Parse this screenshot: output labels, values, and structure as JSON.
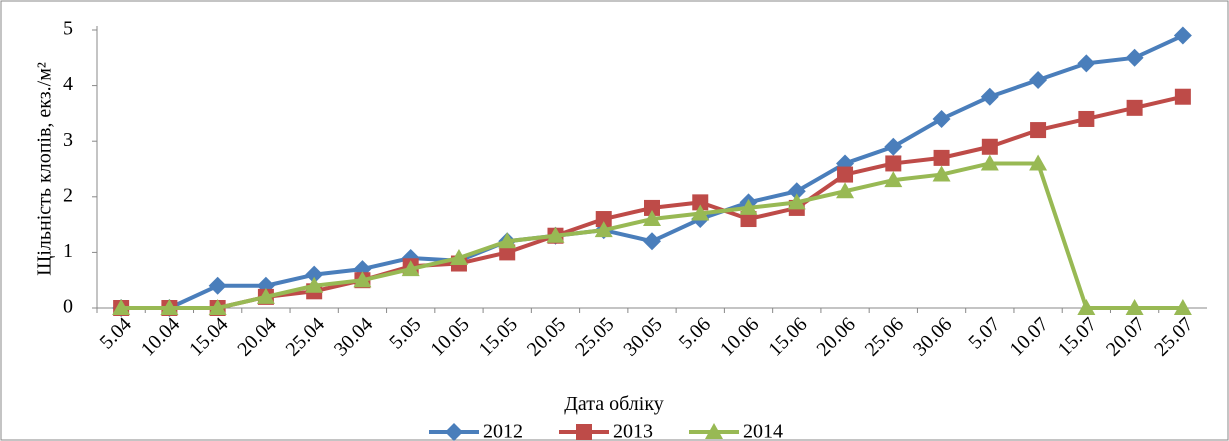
{
  "chart_data": {
    "type": "line",
    "x_label": "Дата обліку",
    "y_label": "Щільність клопів, екз./м²",
    "categories": [
      "5.04",
      "10.04",
      "15.04",
      "20.04",
      "25.04",
      "30.04",
      "5.05",
      "10.05",
      "15.05",
      "20.05",
      "25.05",
      "30.05",
      "5.06",
      "10.06",
      "15.06",
      "20.06",
      "25.06",
      "30.06",
      "5.07",
      "10.07",
      "15.07",
      "20.07",
      "25.07"
    ],
    "series": [
      {
        "name": "2012",
        "color": "#4a7ebb",
        "marker": "diamond",
        "values": [
          0,
          0,
          0.4,
          0.4,
          0.6,
          0.7,
          0.9,
          0.85,
          1.2,
          1.3,
          1.4,
          1.2,
          1.6,
          1.9,
          2.1,
          2.6,
          2.9,
          3.4,
          3.8,
          4.1,
          4.4,
          4.5,
          4.9
        ]
      },
      {
        "name": "2013",
        "color": "#be4b48",
        "marker": "square",
        "values": [
          0,
          0,
          0,
          0.2,
          0.3,
          0.5,
          0.75,
          0.8,
          1.0,
          1.3,
          1.6,
          1.8,
          1.9,
          1.6,
          1.8,
          2.4,
          2.6,
          2.7,
          2.9,
          3.2,
          3.4,
          3.6,
          3.8
        ]
      },
      {
        "name": "2014",
        "color": "#98b954",
        "marker": "triangle",
        "values": [
          0,
          0,
          0,
          0.2,
          0.4,
          0.5,
          0.7,
          0.9,
          1.2,
          1.3,
          1.4,
          1.6,
          1.7,
          1.8,
          1.9,
          2.1,
          2.3,
          2.4,
          2.6,
          2.6,
          0,
          0,
          0
        ]
      }
    ],
    "ylim": [
      0,
      5
    ],
    "yticks": [
      0,
      1,
      2,
      3,
      4,
      5
    ],
    "grid": false,
    "legend": "bottom"
  }
}
